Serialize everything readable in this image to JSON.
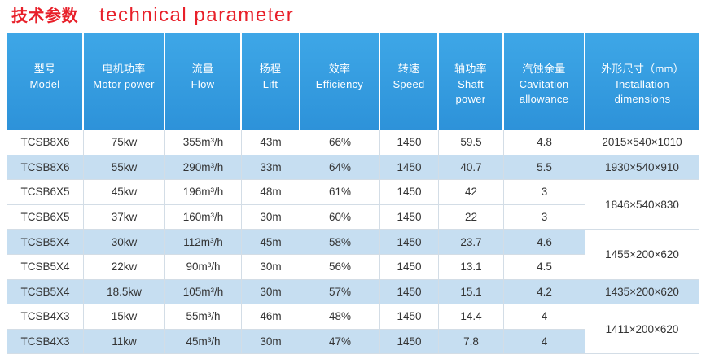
{
  "title": {
    "zh": "技术参数",
    "en": "technical parameter"
  },
  "colors": {
    "title": "#e8202a",
    "header_background_top": "#3ea7e7",
    "header_background": "#2d92d9",
    "row_highlight": "#c6def1",
    "text": "#333333"
  },
  "table": {
    "headers": [
      {
        "zh": "型号",
        "en": [
          "Model"
        ]
      },
      {
        "zh": "电机功率",
        "en": [
          "Motor power"
        ]
      },
      {
        "zh": "流量",
        "en": [
          "Flow"
        ]
      },
      {
        "zh": "扬程",
        "en": [
          "Lift"
        ]
      },
      {
        "zh": "效率",
        "en": [
          "Efficiency"
        ]
      },
      {
        "zh": "转速",
        "en": [
          "Speed"
        ]
      },
      {
        "zh": "轴功率",
        "en": [
          "Shaft",
          "power"
        ]
      },
      {
        "zh": "汽蚀余量",
        "en": [
          "Cavitation",
          "allowance"
        ]
      },
      {
        "zh": "外形尺寸（mm）",
        "en": [
          "Installation",
          "dimensions"
        ]
      }
    ],
    "rows": [
      {
        "model": "TCSB8X6",
        "motor_power": "75kw",
        "flow": "355m³/h",
        "lift": "43m",
        "efficiency": "66%",
        "speed": "1450",
        "shaft_power": "59.5",
        "cavitation_allowance": "4.8"
      },
      {
        "model": "TCSB8X6",
        "motor_power": "55kw",
        "flow": "290m³/h",
        "lift": "33m",
        "efficiency": "64%",
        "speed": "1450",
        "shaft_power": "40.7",
        "cavitation_allowance": "5.5"
      },
      {
        "model": "TCSB6X5",
        "motor_power": "45kw",
        "flow": "196m³/h",
        "lift": "48m",
        "efficiency": "61%",
        "speed": "1450",
        "shaft_power": "42",
        "cavitation_allowance": "3"
      },
      {
        "model": "TCSB6X5",
        "motor_power": "37kw",
        "flow": "160m³/h",
        "lift": "30m",
        "efficiency": "60%",
        "speed": "1450",
        "shaft_power": "22",
        "cavitation_allowance": "3"
      },
      {
        "model": "TCSB5X4",
        "motor_power": "30kw",
        "flow": "112m³/h",
        "lift": "45m",
        "efficiency": "58%",
        "speed": "1450",
        "shaft_power": "23.7",
        "cavitation_allowance": "4.6"
      },
      {
        "model": "TCSB5X4",
        "motor_power": "22kw",
        "flow": "90m³/h",
        "lift": "30m",
        "efficiency": "56%",
        "speed": "1450",
        "shaft_power": "13.1",
        "cavitation_allowance": "4.5"
      },
      {
        "model": "TCSB5X4",
        "motor_power": "18.5kw",
        "flow": "105m³/h",
        "lift": "30m",
        "efficiency": "57%",
        "speed": "1450",
        "shaft_power": "15.1",
        "cavitation_allowance": "4.2"
      },
      {
        "model": "TCSB4X3",
        "motor_power": "15kw",
        "flow": "55m³/h",
        "lift": "46m",
        "efficiency": "48%",
        "speed": "1450",
        "shaft_power": "14.4",
        "cavitation_allowance": "4"
      },
      {
        "model": "TCSB4X3",
        "motor_power": "11kw",
        "flow": "45m³/h",
        "lift": "30m",
        "efficiency": "47%",
        "speed": "1450",
        "shaft_power": "7.8",
        "cavitation_allowance": "4"
      }
    ],
    "installation_dimensions": [
      "2015×540×1010",
      "1930×540×910",
      "1846×540×830",
      "1455×200×620",
      "1435×200×620",
      "1411×200×620"
    ]
  }
}
